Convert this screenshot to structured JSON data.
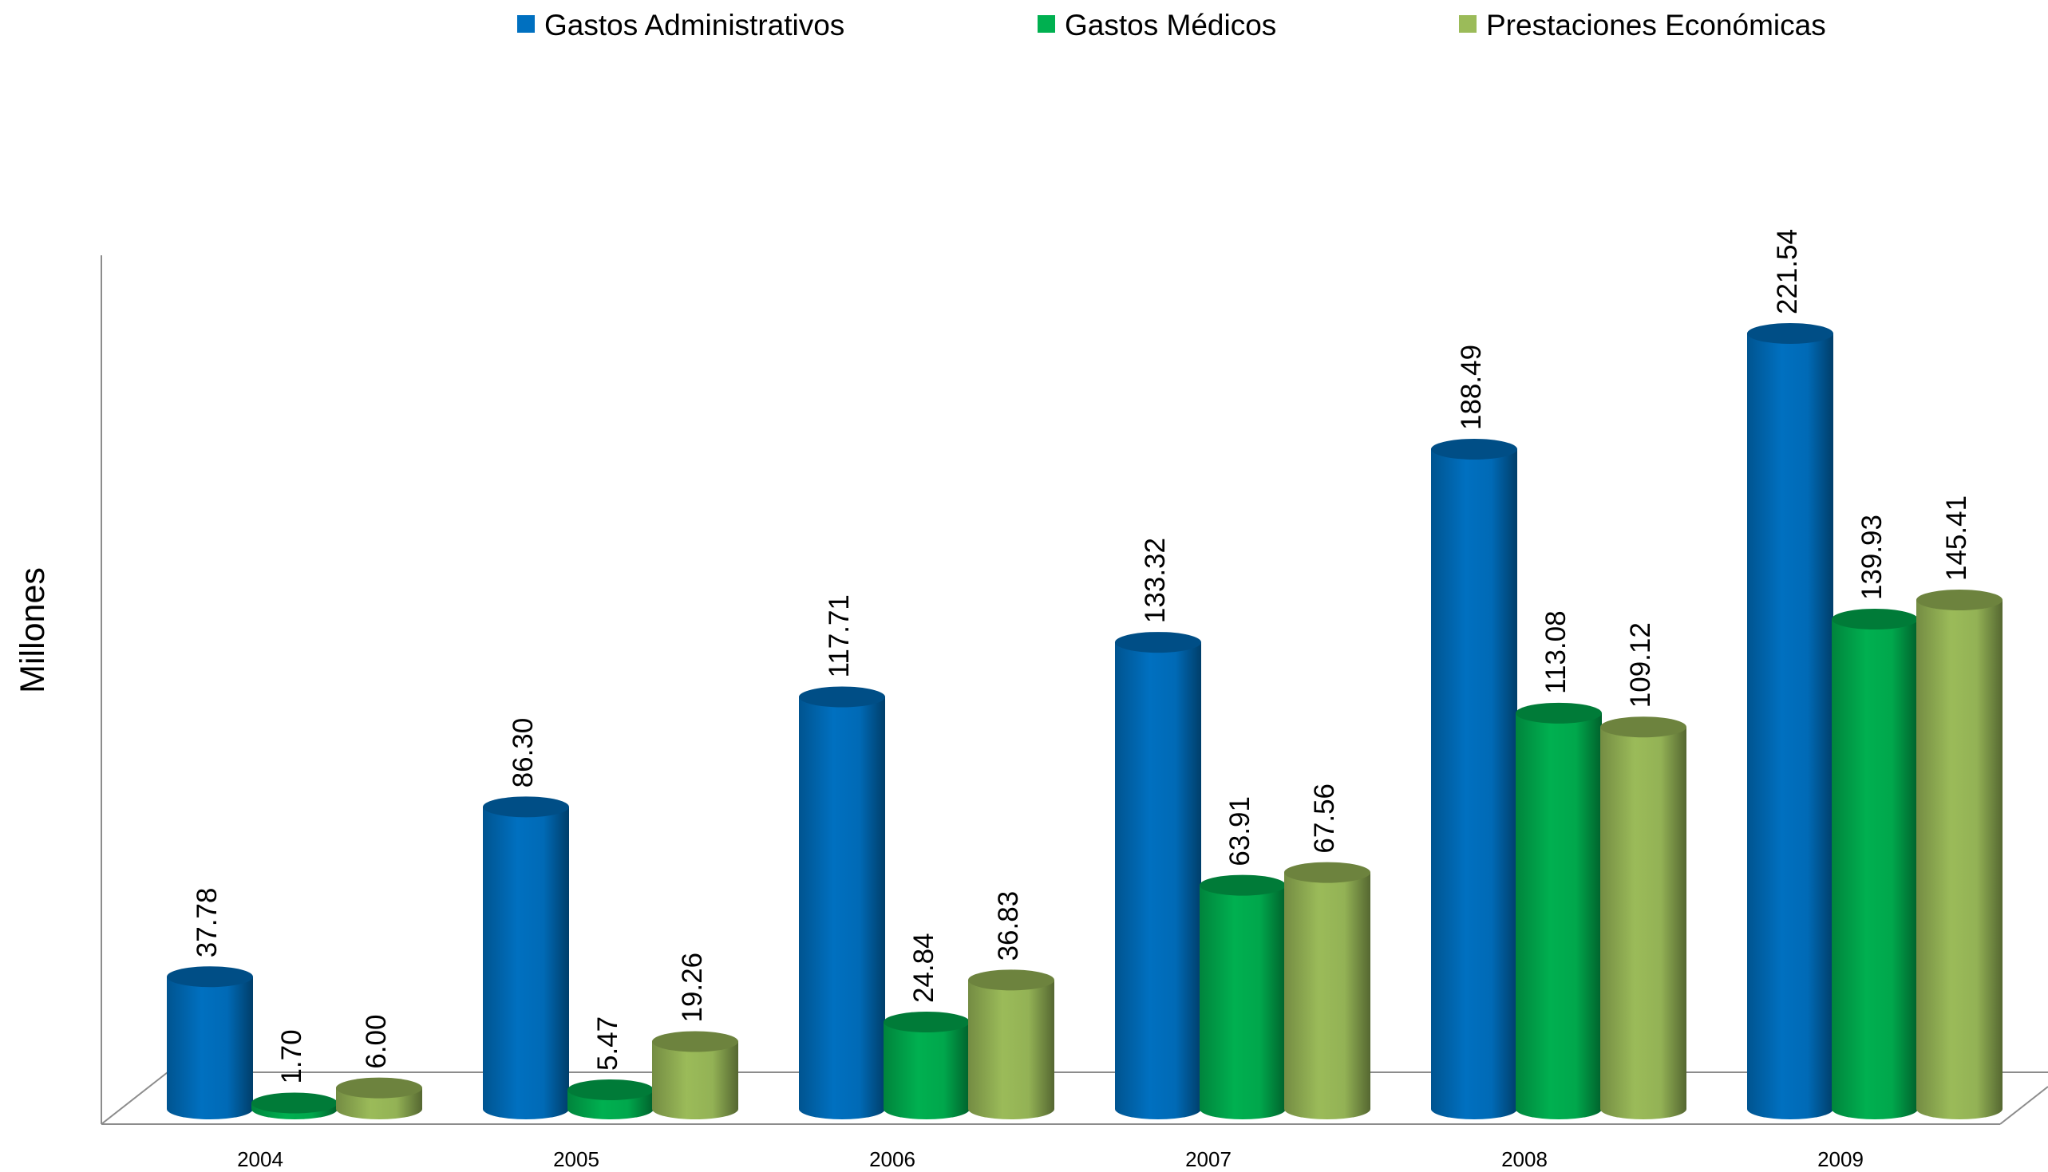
{
  "chart_data": {
    "type": "bar",
    "title": "",
    "xlabel": "",
    "ylabel": "Millones",
    "categories": [
      "2004",
      "2005",
      "2006",
      "2007",
      "2008",
      "2009"
    ],
    "series": [
      {
        "name": "Gastos Administrativos",
        "color": "#0070C0",
        "values": [
          37.78,
          86.3,
          117.71,
          133.32,
          188.49,
          221.54
        ],
        "labels": [
          "37.78",
          "86.30",
          "117.71",
          "133.32",
          "188.49",
          "221.54"
        ]
      },
      {
        "name": "Gastos Médicos",
        "color": "#00B050",
        "values": [
          1.7,
          5.47,
          24.84,
          63.91,
          113.08,
          139.93
        ],
        "labels": [
          "1.70",
          "5.47",
          "24.84",
          "63.91",
          "113.08",
          "139.93"
        ]
      },
      {
        "name": "Prestaciones Económicas",
        "color": "#9BBB59",
        "values": [
          6.0,
          19.26,
          36.83,
          67.56,
          109.12,
          145.41
        ],
        "labels": [
          "6.00",
          "19.26",
          "36.83",
          "67.56",
          "109.12",
          "145.41"
        ]
      }
    ],
    "ylim": [
      0,
      221.54
    ],
    "grid": false,
    "legend": "top-center",
    "style": "3d-cylinder"
  }
}
